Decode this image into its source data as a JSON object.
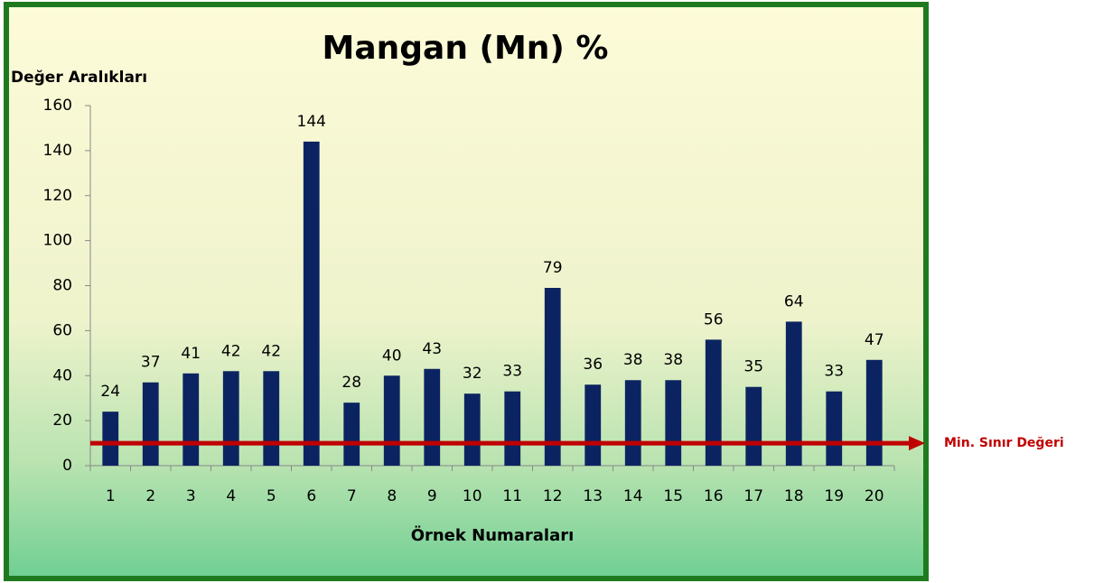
{
  "chart_data": {
    "type": "bar",
    "title": "Mangan (Mn) %",
    "y_label": "Değer Aralıkları",
    "x_label": "Örnek Numaraları",
    "categories": [
      "1",
      "2",
      "3",
      "4",
      "5",
      "6",
      "7",
      "8",
      "9",
      "10",
      "11",
      "12",
      "13",
      "14",
      "15",
      "16",
      "17",
      "18",
      "19",
      "20"
    ],
    "values": [
      24,
      37,
      41,
      42,
      42,
      144,
      28,
      40,
      43,
      32,
      33,
      79,
      36,
      38,
      38,
      56,
      35,
      64,
      33,
      47
    ],
    "color": "#0b2461",
    "ylim": [
      0,
      160
    ],
    "yticks": [
      0,
      20,
      40,
      60,
      80,
      100,
      120,
      140,
      160
    ],
    "grid": false,
    "threshold": {
      "value": 10,
      "label": "Min. Sınır Değeri",
      "color": "#c00000"
    }
  }
}
